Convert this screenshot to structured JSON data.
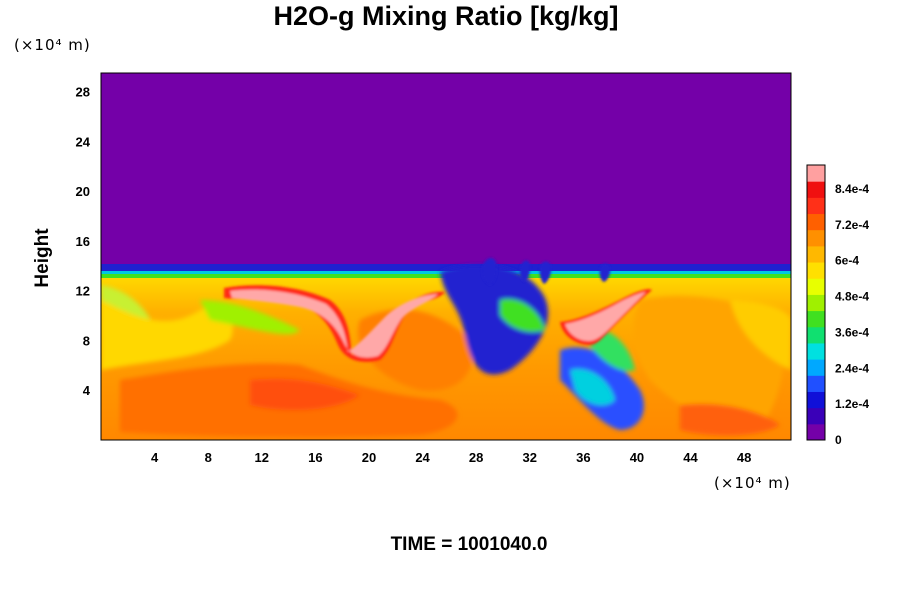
{
  "chart_data": {
    "type": "heatmap",
    "title": "H2O-g Mixing Ratio [kg/kg]",
    "ylabel": "Height",
    "xunit_label": "(×10⁴ m)",
    "yunit_label": "(×10⁴ m)",
    "xlim": [
      0,
      51.5
    ],
    "ylim": [
      0,
      29.5
    ],
    "x_ticks": [
      4,
      8,
      12,
      16,
      20,
      24,
      28,
      32,
      36,
      40,
      44,
      48
    ],
    "y_ticks": [
      4,
      8,
      12,
      16,
      20,
      24,
      28
    ],
    "colorbar": {
      "range": [
        0,
        0.00092
      ],
      "labels": [
        {
          "value": 0,
          "text": "0"
        },
        {
          "value": 0.00012,
          "text": "1.2e-4"
        },
        {
          "value": 0.00024,
          "text": "2.4e-4"
        },
        {
          "value": 0.00036,
          "text": "3.6e-4"
        },
        {
          "value": 0.00048,
          "text": "4.8e-4"
        },
        {
          "value": 0.0006,
          "text": "6e-4"
        },
        {
          "value": 0.00072,
          "text": "7.2e-4"
        },
        {
          "value": 0.00084,
          "text": "8.4e-4"
        }
      ],
      "colors": [
        "#7400a8",
        "#3a00b8",
        "#1010d8",
        "#2050ff",
        "#00a8ff",
        "#00e0e0",
        "#10e070",
        "#40e020",
        "#a0f000",
        "#e8ff00",
        "#ffe000",
        "#ffb800",
        "#ff9000",
        "#ff6000",
        "#ff3018",
        "#f01010",
        "#ffa0a0"
      ]
    },
    "dry_layer_top": 13.7,
    "moist_layer_bottom": 0,
    "moist_layer_top": 12.5,
    "features": [
      {
        "kind": "high_moisture_plume",
        "x": [
          10,
          19
        ],
        "y": [
          6.5,
          12.5
        ],
        "value": 0.0009
      },
      {
        "kind": "high_moisture_plume",
        "x": [
          34,
          41
        ],
        "y": [
          7.5,
          12.5
        ],
        "value": 0.0009
      },
      {
        "kind": "dry_intrusion",
        "x": [
          27,
          40
        ],
        "y": [
          0.5,
          14
        ],
        "value": 0.0001
      }
    ]
  },
  "time_label": "TIME = 1001040.0"
}
